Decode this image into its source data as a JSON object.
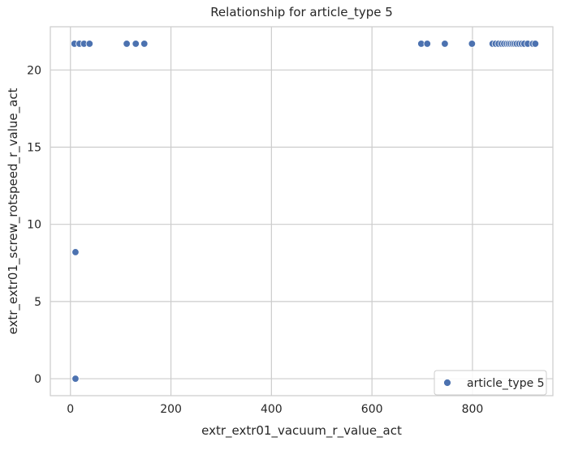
{
  "chart_data": {
    "type": "scatter",
    "title": "Relationship for article_type 5",
    "xlabel": "extr_extr01_vacuum_r_value_act",
    "ylabel": "extr_extr01_screw_rotspeed_r_value_act",
    "xlim": [
      -40,
      960
    ],
    "ylim": [
      -1.1,
      22.8
    ],
    "xticks": [
      0,
      200,
      400,
      600,
      800
    ],
    "yticks": [
      0,
      5,
      10,
      15,
      20
    ],
    "grid": true,
    "legend_position": "lower right",
    "colors": {
      "marker": "#4c72b0",
      "grid": "#cccccc",
      "axes_edge": "#cccccc",
      "background": "#ffffff"
    },
    "series": [
      {
        "name": "article_type 5",
        "points": [
          {
            "x": 8,
            "y": 21.7
          },
          {
            "x": 18,
            "y": 21.7
          },
          {
            "x": 27,
            "y": 21.7
          },
          {
            "x": 38,
            "y": 21.7
          },
          {
            "x": 112,
            "y": 21.7
          },
          {
            "x": 130,
            "y": 21.7
          },
          {
            "x": 147,
            "y": 21.7
          },
          {
            "x": 698,
            "y": 21.7
          },
          {
            "x": 710,
            "y": 21.7
          },
          {
            "x": 745,
            "y": 21.7
          },
          {
            "x": 799,
            "y": 21.7
          },
          {
            "x": 840,
            "y": 21.7
          },
          {
            "x": 846,
            "y": 21.7
          },
          {
            "x": 852,
            "y": 21.7
          },
          {
            "x": 858,
            "y": 21.7
          },
          {
            "x": 863,
            "y": 21.7
          },
          {
            "x": 868,
            "y": 21.7
          },
          {
            "x": 872,
            "y": 21.7
          },
          {
            "x": 876,
            "y": 21.7
          },
          {
            "x": 880,
            "y": 21.7
          },
          {
            "x": 884,
            "y": 21.7
          },
          {
            "x": 888,
            "y": 21.7
          },
          {
            "x": 893,
            "y": 21.7
          },
          {
            "x": 898,
            "y": 21.7
          },
          {
            "x": 903,
            "y": 21.7
          },
          {
            "x": 910,
            "y": 21.7
          },
          {
            "x": 920,
            "y": 21.7
          },
          {
            "x": 925,
            "y": 21.7
          },
          {
            "x": 10,
            "y": 8.2
          },
          {
            "x": 10,
            "y": 0.0
          }
        ]
      }
    ]
  }
}
